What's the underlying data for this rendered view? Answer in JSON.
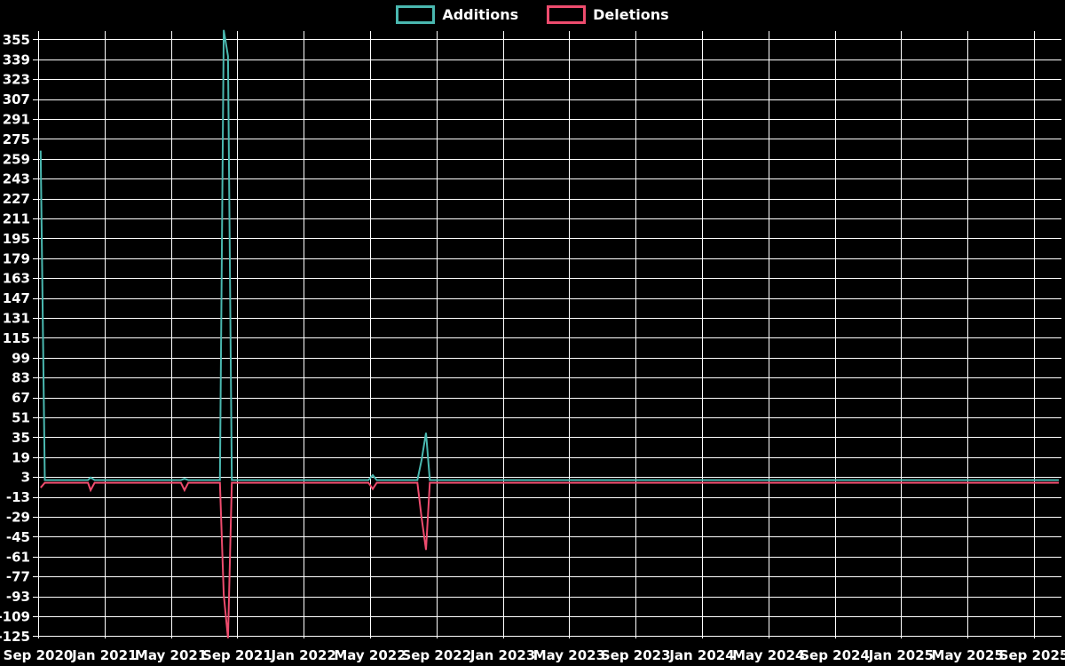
{
  "chart_data": {
    "type": "line",
    "title": "",
    "legend": [
      {
        "label": "Additions",
        "color": "#4ab8b0"
      },
      {
        "label": "Deletions",
        "color": "#ee4c6e"
      }
    ],
    "background_color": "#000000",
    "grid_color": "#ffffff",
    "text_color": "#ffffff",
    "grid": true,
    "legend_position": "top-center",
    "ylim": [
      -125,
      362
    ],
    "y_tick_step": 16,
    "y_ticks": [
      355,
      339,
      323,
      307,
      291,
      275,
      259,
      243,
      227,
      211,
      195,
      179,
      163,
      147,
      131,
      115,
      99,
      83,
      67,
      51,
      35,
      19,
      3,
      -13,
      -29,
      -45,
      -61,
      -77,
      -93,
      -109,
      -125
    ],
    "x_ticks": [
      "Sep 2020",
      "Jan 2021",
      "May 2021",
      "Sep 2021",
      "Jan 2022",
      "May 2022",
      "Sep 2022",
      "Jan 2023",
      "May 2023",
      "Sep 2023",
      "Jan 2024",
      "May 2024",
      "Sep 2024",
      "Jan 2025",
      "May 2025",
      "Sep 2025"
    ],
    "x_unit": "months since Sep 2020, weekly resolution",
    "x_domain_months": [
      0,
      61.5
    ],
    "series": [
      {
        "name": "Additions",
        "color": "#4ab8b0",
        "points": [
          [
            0.15,
            265
          ],
          [
            0.4,
            0
          ],
          [
            3.0,
            0
          ],
          [
            3.16,
            2
          ],
          [
            3.4,
            0
          ],
          [
            8.6,
            0
          ],
          [
            8.82,
            1
          ],
          [
            9.05,
            0
          ],
          [
            10.95,
            0
          ],
          [
            11.18,
            362
          ],
          [
            11.44,
            341
          ],
          [
            11.67,
            0
          ],
          [
            19.9,
            0
          ],
          [
            20.16,
            4
          ],
          [
            20.4,
            0
          ],
          [
            22.85,
            0
          ],
          [
            23.1,
            16
          ],
          [
            23.37,
            38
          ],
          [
            23.6,
            0
          ],
          [
            61.5,
            0
          ]
        ]
      },
      {
        "name": "Deletions",
        "color": "#ee4c6e",
        "points": [
          [
            0.15,
            -4
          ],
          [
            0.4,
            0
          ],
          [
            3.0,
            0
          ],
          [
            3.16,
            -6
          ],
          [
            3.4,
            0
          ],
          [
            8.6,
            0
          ],
          [
            8.82,
            -6
          ],
          [
            9.05,
            0
          ],
          [
            10.95,
            0
          ],
          [
            11.18,
            -90
          ],
          [
            11.44,
            -125
          ],
          [
            11.67,
            0
          ],
          [
            19.9,
            0
          ],
          [
            20.16,
            -5
          ],
          [
            20.4,
            0
          ],
          [
            22.85,
            0
          ],
          [
            23.1,
            -28
          ],
          [
            23.37,
            -54
          ],
          [
            23.6,
            0
          ],
          [
            61.5,
            0
          ]
        ]
      }
    ]
  }
}
